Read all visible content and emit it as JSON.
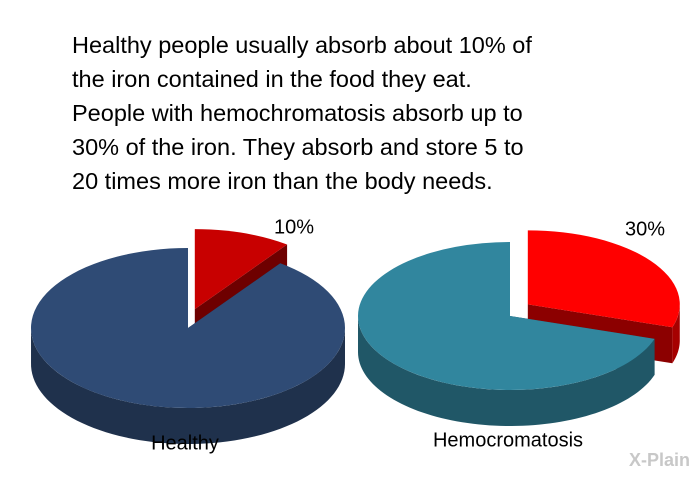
{
  "intro_lines": [
    "Healthy people usually absorb about 10% of",
    "the iron contained in the food they eat.",
    "People with hemochromatosis absorb up to",
    "30% of the iron. They absorb and store 5 to",
    "20 times more iron than the body needs."
  ],
  "watermark": "X-Plain",
  "chart_data": [
    {
      "type": "pie",
      "title": "Healthy",
      "categories": [
        null,
        null
      ],
      "values": [
        10,
        90
      ],
      "value_labels": [
        "10%",
        null
      ],
      "colors": [
        "#c80000",
        "#2f4b75"
      ]
    },
    {
      "type": "pie",
      "title": "Hemocromatosis",
      "categories": [
        null,
        null
      ],
      "values": [
        30,
        70
      ],
      "value_labels": [
        "30%",
        null
      ],
      "colors": [
        "#ff0000",
        "#31869e"
      ]
    }
  ]
}
